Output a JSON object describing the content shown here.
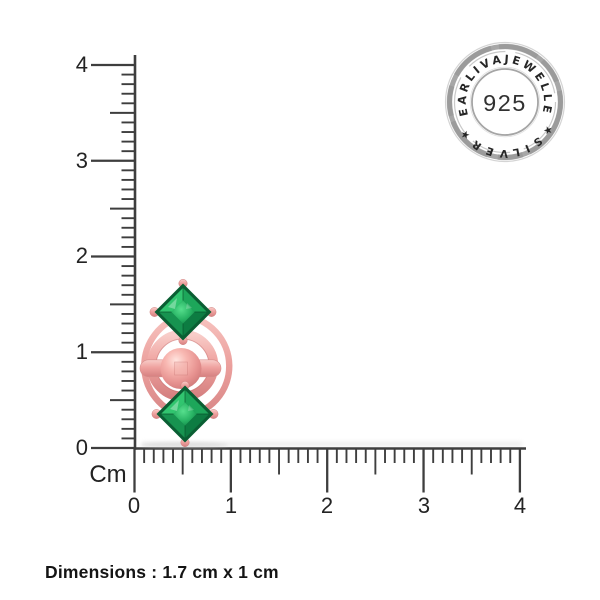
{
  "product": {
    "dimensions_text": "Dimensions : 1.7 cm x 1 cm",
    "item": "rose-gold stud earring with two princess-cut green gemstones",
    "metal_color": "#efa09d",
    "gem_color": "#14914c"
  },
  "rulers": {
    "unit_label": "Cm",
    "vertical_labels": [
      "4",
      "3",
      "2",
      "1",
      "0"
    ],
    "horizontal_labels": [
      "0",
      "1",
      "2",
      "3",
      "4"
    ],
    "tick_color": "#3e3e3e"
  },
  "seal": {
    "top_text": "PEARLIVAJEWELLER",
    "bottom_text": "★SILVER★",
    "center_text": "925",
    "ring_color": "#a7a7a7",
    "text_color": "#262626"
  }
}
